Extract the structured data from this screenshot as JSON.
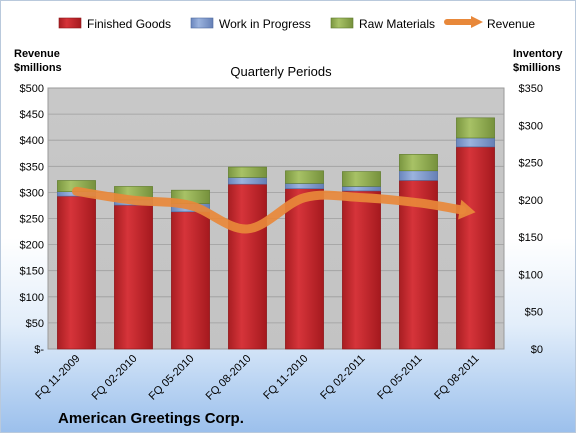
{
  "chart_data": {
    "type": "bar",
    "subtype": "stacked-bar-with-line",
    "title": "Quarterly Periods",
    "footer": "American Greetings Corp.",
    "left_axis": {
      "label_line1": "Revenue",
      "label_line2": "$millions",
      "range": [
        0,
        500
      ],
      "ticks": [
        "$-",
        "$50",
        "$100",
        "$150",
        "$200",
        "$250",
        "$300",
        "$350",
        "$400",
        "$450",
        "$500"
      ]
    },
    "right_axis": {
      "label_line1": "Inventory",
      "label_line2": "$millions",
      "range": [
        0,
        350
      ],
      "ticks": [
        "$0",
        "$50",
        "$100",
        "$150",
        "$200",
        "$250",
        "$300",
        "$350"
      ]
    },
    "categories": [
      "FQ 11-2009",
      "FQ 02-2010",
      "FQ 05-2010",
      "FQ 08-2010",
      "FQ 11-2010",
      "FQ 02-2011",
      "FQ 05-2011",
      "FQ 08-2011"
    ],
    "series": [
      {
        "name": "Finished Goods",
        "axis": "right",
        "color": "#c0282d",
        "values": [
          205,
          193,
          184,
          221,
          215,
          212,
          226,
          271
        ]
      },
      {
        "name": "Work in Progress",
        "axis": "right",
        "color": "#7b97cc",
        "values": [
          6,
          7,
          11,
          9,
          7,
          6,
          13,
          12
        ]
      },
      {
        "name": "Raw Materials",
        "axis": "right",
        "color": "#8daa4b",
        "values": [
          15,
          18,
          18,
          14,
          17,
          20,
          22,
          27
        ]
      },
      {
        "name": "Revenue",
        "axis": "left",
        "type": "line",
        "color": "#e8883a",
        "values": [
          302,
          285,
          275,
          230,
          290,
          290,
          280,
          262
        ]
      }
    ],
    "grid": true,
    "legend": "top"
  }
}
